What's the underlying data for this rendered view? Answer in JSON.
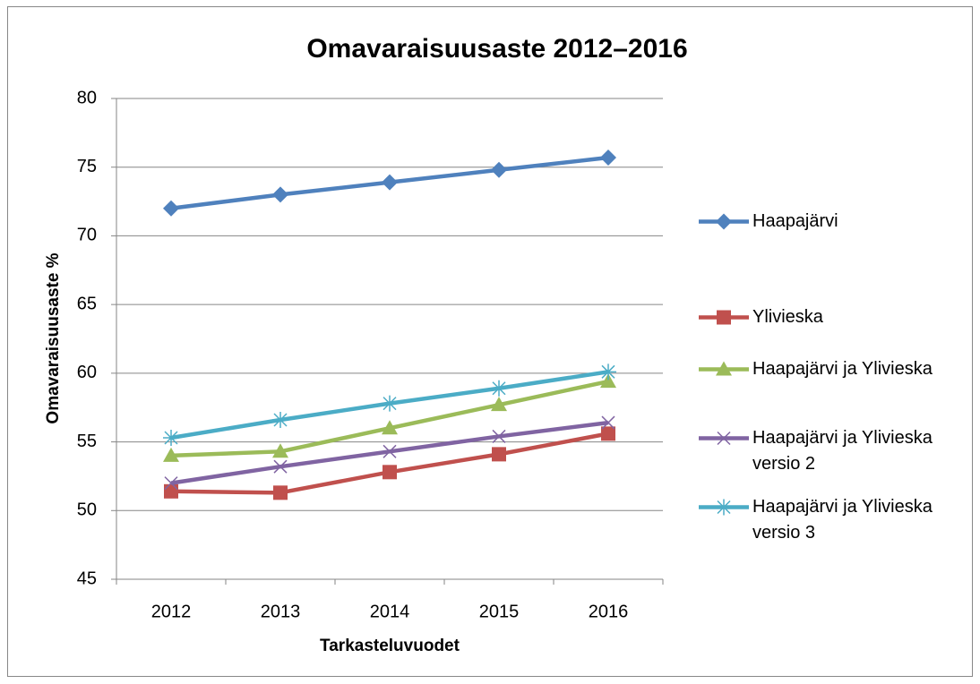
{
  "chart_data": {
    "type": "line",
    "title": "Omavaraisuusaste 2012–2016",
    "x_label": "Tarkasteluvuodet",
    "y_label": "Omavaraisuusaste %",
    "categories": [
      "2012",
      "2013",
      "2014",
      "2015",
      "2016"
    ],
    "series": [
      {
        "name": "Haapajärvi",
        "color": "#4f81bd",
        "marker": "diamond",
        "values": [
          72.0,
          73.0,
          73.9,
          74.8,
          75.7
        ]
      },
      {
        "name": "Ylivieska",
        "color": "#c0504d",
        "marker": "square",
        "values": [
          51.4,
          51.3,
          52.8,
          54.1,
          55.6
        ]
      },
      {
        "name": "Haapajärvi ja Ylivieska",
        "color": "#9bbb59",
        "marker": "triangle",
        "values": [
          54.0,
          54.3,
          56.0,
          57.7,
          59.4
        ]
      },
      {
        "name": "Haapajärvi ja Ylivieska versio 2",
        "color": "#8064a2",
        "marker": "x",
        "values": [
          52.0,
          53.2,
          54.3,
          55.4,
          56.4
        ]
      },
      {
        "name": "Haapajärvi ja Ylivieska versio 3",
        "color": "#4bacc6",
        "marker": "asterisk",
        "values": [
          55.3,
          56.6,
          57.8,
          58.9,
          60.1
        ]
      }
    ],
    "ylim": [
      45,
      80
    ],
    "yticks": [
      45,
      50,
      55,
      60,
      65,
      70,
      75,
      80
    ],
    "grid": true,
    "legend": "right"
  }
}
